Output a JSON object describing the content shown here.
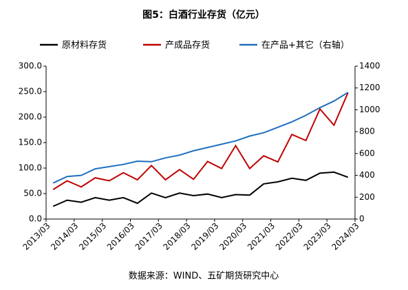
{
  "chart_data": {
    "type": "line",
    "title": "图5：白酒行业存货（亿元）",
    "source": "数据来源：WIND、五矿期货研究中心",
    "x": [
      "2013/06",
      "2013/12",
      "2014/06",
      "2014/12",
      "2015/06",
      "2015/12",
      "2016/06",
      "2016/12",
      "2017/06",
      "2017/12",
      "2018/06",
      "2018/12",
      "2019/06",
      "2019/12",
      "2020/06",
      "2020/12",
      "2021/06",
      "2021/12",
      "2022/06",
      "2022/12",
      "2023/06",
      "2023/12"
    ],
    "series": [
      {
        "name": "原材料存货",
        "color": "#000000",
        "values": [
          25,
          37,
          33,
          42,
          37,
          42,
          31,
          51,
          42,
          51,
          46,
          49,
          42,
          48,
          47,
          69,
          73,
          80,
          76,
          90,
          92,
          82
        ]
      },
      {
        "name": "产成品存货",
        "color": "#c00000",
        "values": [
          58,
          75,
          63,
          81,
          75,
          91,
          77,
          105,
          77,
          97,
          78,
          113,
          99,
          144,
          99,
          124,
          112,
          166,
          154,
          216,
          184,
          248
        ]
      },
      {
        "name": "在产品+其它（右轴）",
        "color": "#1f6fc0",
        "axis": "y2",
        "values": [
          330,
          390,
          400,
          460,
          480,
          500,
          530,
          525,
          560,
          585,
          625,
          655,
          685,
          715,
          760,
          790,
          840,
          890,
          950,
          1020,
          1080,
          1160
        ]
      }
    ],
    "xlim": [
      "2013/03",
      "2024/03"
    ],
    "xticks": [
      "2013/03",
      "2014/03",
      "2015/03",
      "2016/03",
      "2017/03",
      "2018/03",
      "2019/03",
      "2020/03",
      "2021/03",
      "2022/03",
      "2023/03",
      "2024/03"
    ],
    "ylim": [
      0,
      300
    ],
    "yticks": [
      {
        "value": 0,
        "label": "0.0"
      },
      {
        "value": 50,
        "label": "50.0"
      },
      {
        "value": 100,
        "label": "100.0"
      },
      {
        "value": 150,
        "label": "150.0"
      },
      {
        "value": 200,
        "label": "200.0"
      },
      {
        "value": 250,
        "label": "250.0"
      },
      {
        "value": 300,
        "label": "300.0"
      }
    ],
    "y2lim": [
      0,
      1400
    ],
    "y2ticks": [
      0,
      200,
      400,
      600,
      800,
      1000,
      1200,
      1400
    ],
    "legend": "top",
    "grid": false
  }
}
